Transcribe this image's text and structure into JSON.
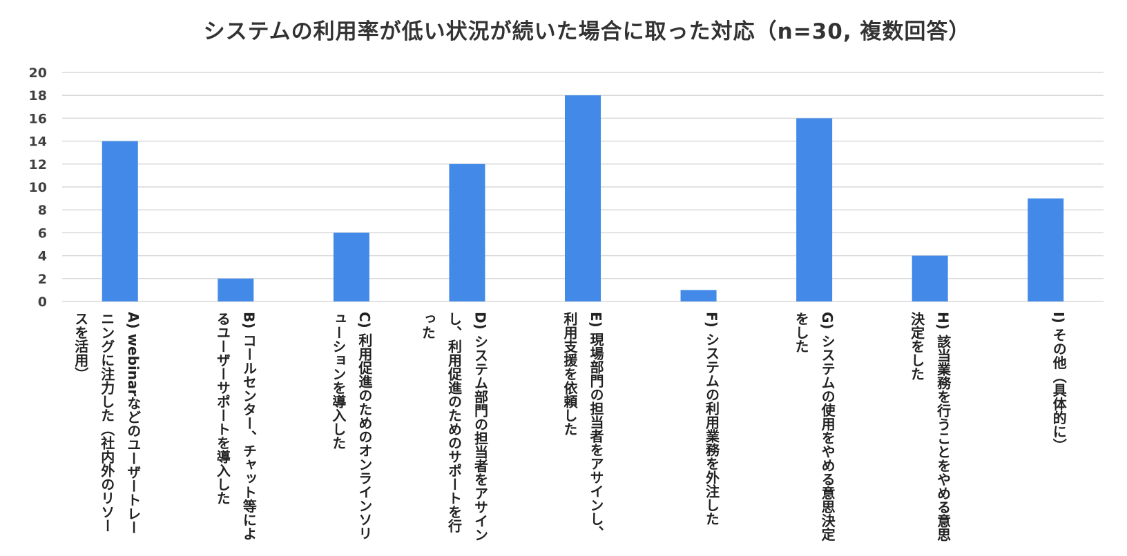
{
  "chart_data": {
    "type": "bar",
    "title": "システムの利用率が低い状況が続いた場合に取った対応（n=30, 複数回答）",
    "categories": [
      "A) webinarなどのユーザートレーニングに注力した（社内外のリソースを活用）",
      "B) コールセンター、チャット等によるユーザーサポートを導入した",
      "C) 利用促進のためのオンラインソリューションを導入した",
      "D) システム部門の担当者をアサインし、利用促進のためのサポートを行った",
      "E) 現場部門の担当者をアサインし、利用支援を依頼した",
      "F) システムの利用業務を外注した",
      "G) システムの使用をやめる意思決定をした",
      "H) 該当業務を行うことをやめる意思決定をした",
      "I) その他（具体的に）"
    ],
    "values": [
      14,
      2,
      6,
      12,
      18,
      1,
      16,
      4,
      9
    ],
    "ylim": [
      0,
      20
    ],
    "yticks": [
      0,
      2,
      4,
      6,
      8,
      10,
      12,
      14,
      16,
      18,
      20
    ],
    "grid": true,
    "legend": "none",
    "bar_color": "#438ae8"
  }
}
